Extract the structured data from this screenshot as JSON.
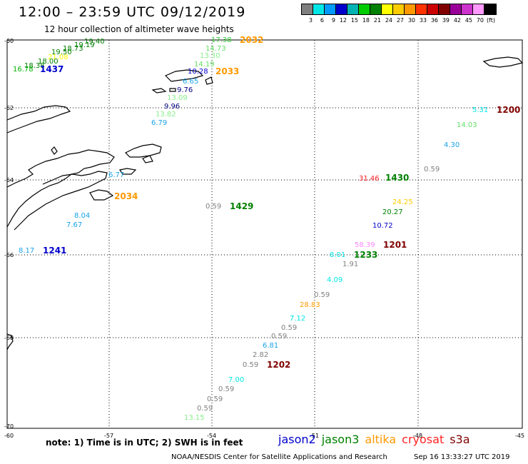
{
  "header": {
    "title": "12:00 – 23:59 UTC 09/12/2019",
    "subtitle": "12 hour collection of altimeter wave heights"
  },
  "legend": {
    "colors": [
      "#7f7f7f",
      "#00e6e6",
      "#0099ff",
      "#0000cc",
      "#00b3b3",
      "#00cc00",
      "#008000",
      "#ffff00",
      "#ffcc00",
      "#ff9900",
      "#ff3300",
      "#cc0000",
      "#800000",
      "#990099",
      "#cc33cc",
      "#ff99ff",
      "#000000"
    ],
    "ticks": [
      "3",
      "6",
      "9",
      "12",
      "15",
      "18",
      "21",
      "24",
      "27",
      "30",
      "33",
      "36",
      "39",
      "42",
      "45",
      "70",
      "(ft)"
    ]
  },
  "axes": {
    "y_labels": [
      "-60",
      "-62",
      "-64",
      "-66",
      "-68",
      "-70"
    ],
    "x_labels": [
      "-60",
      "-57",
      "-54",
      "-51",
      "-48",
      "-45"
    ]
  },
  "observations": [
    {
      "text": "17.38",
      "color": "#33cc33"
    },
    {
      "text": "14.73",
      "color": "#66dd66"
    },
    {
      "text": "13.30",
      "color": "#88ee88"
    },
    {
      "text": "14.19",
      "color": "#66dd66"
    },
    {
      "text": "10.28",
      "color": "#0000cc"
    },
    {
      "text": "6.65",
      "color": "#1aa3e8"
    },
    {
      "text": "9.76",
      "color": "#000080"
    },
    {
      "text": "9.96",
      "color": "#000080"
    },
    {
      "text": "13.09",
      "color": "#88ee88"
    },
    {
      "text": "13.82",
      "color": "#88ee88"
    },
    {
      "text": "6.79",
      "color": "#1aa3e8"
    },
    {
      "text": "19.40",
      "color": "#008000"
    },
    {
      "text": "19.19",
      "color": "#008000"
    },
    {
      "text": "18.73",
      "color": "#008000"
    },
    {
      "text": "19.50",
      "color": "#008000"
    },
    {
      "text": "21.08",
      "color": "#ffff00"
    },
    {
      "text": "18.00",
      "color": "#008000"
    },
    {
      "text": "18.38",
      "color": "#008000"
    },
    {
      "text": "16.78",
      "color": "#00b300"
    },
    {
      "text": "5.31",
      "color": "#00e6e6"
    },
    {
      "text": "14.03",
      "color": "#66dd66"
    },
    {
      "text": "4.30",
      "color": "#1aa3e8"
    },
    {
      "text": "0.59",
      "color": "#808080"
    },
    {
      "text": "6.77",
      "color": "#1aa3e8"
    },
    {
      "text": "31.46",
      "color": "#ff2222"
    },
    {
      "text": "0.59",
      "color": "#808080"
    },
    {
      "text": "24.25",
      "color": "#ffcc00"
    },
    {
      "text": "20.27",
      "color": "#008000"
    },
    {
      "text": "10.72",
      "color": "#0000cc"
    },
    {
      "text": "8.04",
      "color": "#1aa3e8"
    },
    {
      "text": "7.67",
      "color": "#1aa3e8"
    },
    {
      "text": "8.17",
      "color": "#1aa3e8"
    },
    {
      "text": "58.39",
      "color": "#ff88ff"
    },
    {
      "text": "8.01",
      "color": "#00e6e6"
    },
    {
      "text": "1.91",
      "color": "#808080"
    },
    {
      "text": "4.09",
      "color": "#00e6e6"
    },
    {
      "text": "0.59",
      "color": "#808080"
    },
    {
      "text": "28.83",
      "color": "#ff9900"
    },
    {
      "text": "7.12",
      "color": "#00e6e6"
    },
    {
      "text": "0.59",
      "color": "#808080"
    },
    {
      "text": "0.59",
      "color": "#808080"
    },
    {
      "text": "6.81",
      "color": "#1aa3e8"
    },
    {
      "text": "2.82",
      "color": "#808080"
    },
    {
      "text": "0.59",
      "color": "#808080"
    },
    {
      "text": "7.00",
      "color": "#00e6e6"
    },
    {
      "text": "0.59",
      "color": "#808080"
    },
    {
      "text": "0.59",
      "color": "#808080"
    },
    {
      "text": "0.59",
      "color": "#808080"
    },
    {
      "text": "13.15",
      "color": "#88ee88"
    }
  ],
  "pass_times": [
    {
      "text": "2032",
      "color": "#ff9900"
    },
    {
      "text": "2033",
      "color": "#ff9900"
    },
    {
      "text": "1437",
      "color": "#0000cc"
    },
    {
      "text": "1200",
      "color": "#800000"
    },
    {
      "text": "1430",
      "color": "#008000"
    },
    {
      "text": "2034",
      "color": "#ff9900"
    },
    {
      "text": "1429",
      "color": "#008000"
    },
    {
      "text": "1241",
      "color": "#0000cc"
    },
    {
      "text": "1201",
      "color": "#800000"
    },
    {
      "text": "1233",
      "color": "#008000"
    },
    {
      "text": "1202",
      "color": "#800000"
    }
  ],
  "footer": {
    "note": "note:  1) Time is in UTC;  2) SWH is in feet",
    "satellites": [
      {
        "name": "jason2",
        "color": "#0000cc"
      },
      {
        "name": "jason3",
        "color": "#008000"
      },
      {
        "name": "altika",
        "color": "#ff9900"
      },
      {
        "name": "cryosat",
        "color": "#ff2222"
      },
      {
        "name": "s3a",
        "color": "#800000"
      }
    ],
    "credit": "NOAA/NESDIS Center for Satellite Applications and Research",
    "timestamp": "Sep 16 13:33:27 UTC 2019"
  }
}
